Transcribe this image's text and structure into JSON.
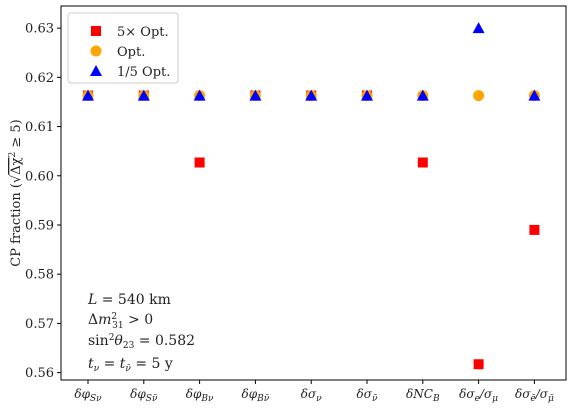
{
  "chart_data": {
    "type": "scatter",
    "ylabel": "CP fraction (√Δχ² ≥ 5)",
    "ylim": [
      0.5585,
      0.6345
    ],
    "yticks": [
      0.56,
      0.57,
      0.58,
      0.59,
      0.6,
      0.61,
      0.62,
      0.63
    ],
    "ytick_labels": [
      "0.56",
      "0.57",
      "0.58",
      "0.59",
      "0.60",
      "0.61",
      "0.62",
      "0.63"
    ],
    "categories": [
      "δφ_Sν",
      "δφ_Sν̄",
      "δφ_Bν",
      "δφ_Bν̄",
      "δσ_ν",
      "δσ_ν̄",
      "δNC_B",
      "δσ_e/σ_μ",
      "δσ_ē/σ_μ̄"
    ],
    "grid": false,
    "legend_position": "top-left",
    "series": [
      {
        "name": "5× Opt.",
        "marker": "square",
        "color": "#ff0000",
        "values": [
          0.6163,
          0.6163,
          0.6027,
          0.6163,
          0.6163,
          0.6163,
          0.6027,
          0.5617,
          0.589
        ]
      },
      {
        "name": "Opt.",
        "marker": "circle",
        "color": "#ffa500",
        "values": [
          0.6163,
          0.6163,
          0.6163,
          0.6163,
          0.6163,
          0.6163,
          0.6163,
          0.6163,
          0.6163
        ]
      },
      {
        "name": "1/5 Opt.",
        "marker": "triangle",
        "color": "#0000ff",
        "values": [
          0.6163,
          0.6163,
          0.6163,
          0.6163,
          0.6163,
          0.6163,
          0.6163,
          0.63,
          0.6163
        ]
      }
    ],
    "annotations": [
      "L = 540 km",
      "Δm²₃₁ > 0",
      "sin²θ₂₃ = 0.582",
      "t_ν = t_ν̄ = 5 y"
    ]
  }
}
